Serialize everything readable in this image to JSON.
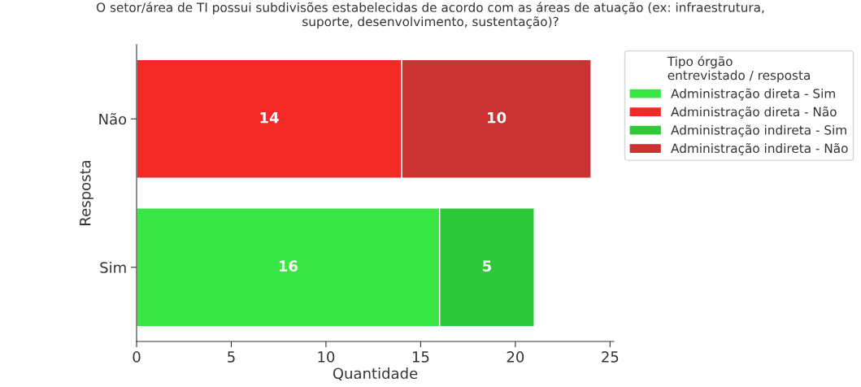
{
  "chart_data": {
    "type": "bar",
    "orientation": "horizontal",
    "stacked": true,
    "title": "O setor/área de TI possui subdivisões estabelecidas de acordo com as áreas de atuação (ex: infraestrutura,\nsuporte, desenvolvimento, sustentação)?",
    "xlabel": "Quantidade",
    "ylabel": "Resposta",
    "legend_title": "Tipo órgão\nentrevistado / resposta",
    "categories": [
      "Não",
      "Sim"
    ],
    "series": [
      {
        "name": "Administração direta - Sim",
        "color": "#3ae646",
        "values": [
          null,
          16
        ]
      },
      {
        "name": "Administração direta - Não",
        "color": "#f52828",
        "values": [
          14,
          null
        ]
      },
      {
        "name": "Administração indireta - Sim",
        "color": "#2ec838",
        "values": [
          null,
          5
        ]
      },
      {
        "name": "Administração indireta - Não",
        "color": "#cb3232",
        "values": [
          10,
          null
        ]
      }
    ],
    "xlim": [
      0,
      25.2
    ],
    "xticks": [
      0,
      5,
      10,
      15,
      20,
      25
    ],
    "data_labels": true,
    "grid": false,
    "legend": "top right"
  }
}
